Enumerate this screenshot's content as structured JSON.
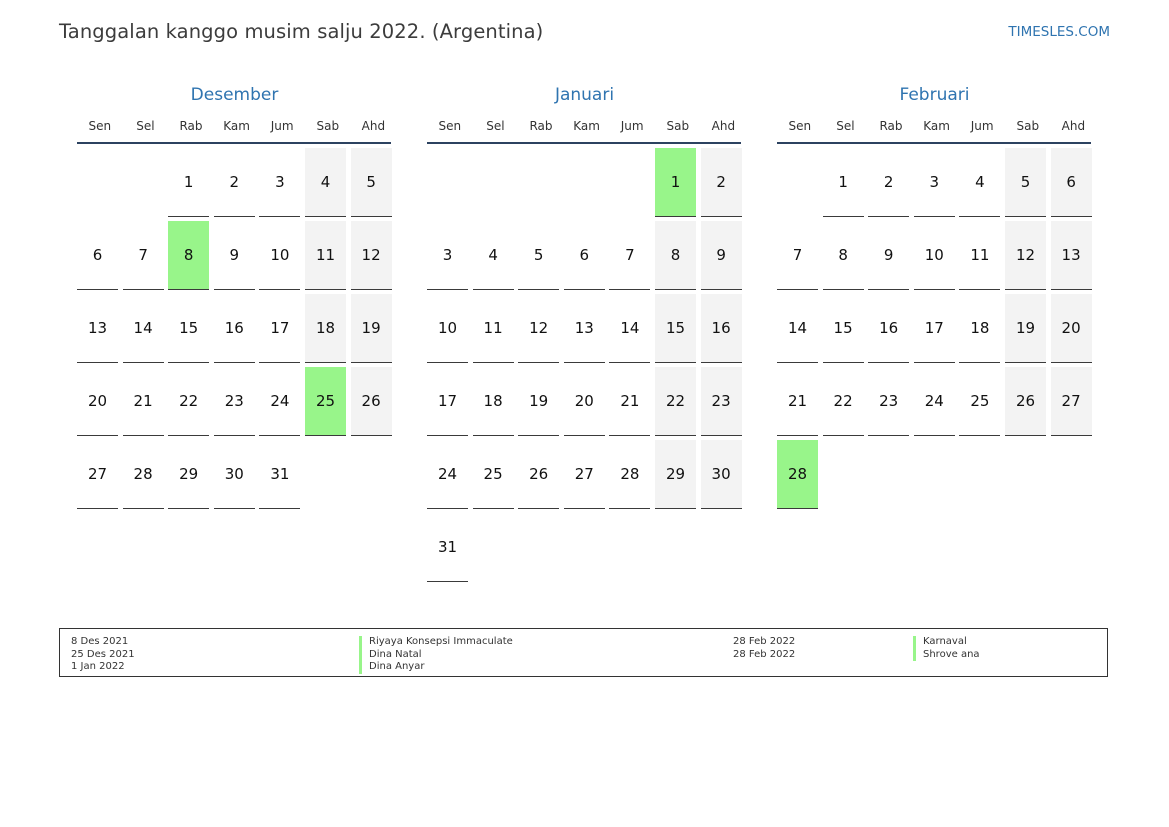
{
  "header": {
    "title": "Tanggalan kanggo musim salju 2022. (Argentina)",
    "brand": "TIMESLES.COM"
  },
  "weekdays": [
    "Sen",
    "Sel",
    "Rab",
    "Kam",
    "Jum",
    "Sab",
    "Ahd"
  ],
  "months": [
    {
      "name": "Desember",
      "start_offset": 2,
      "days": 31,
      "holidays": [
        8,
        25
      ]
    },
    {
      "name": "Januari",
      "start_offset": 5,
      "days": 31,
      "holidays": [
        1
      ]
    },
    {
      "name": "Februari",
      "start_offset": 1,
      "days": 28,
      "holidays": [
        28
      ]
    }
  ],
  "legend": {
    "left": [
      {
        "date": "8 Des 2021",
        "name": "Riyaya Konsepsi Immaculate"
      },
      {
        "date": "25 Des 2021",
        "name": "Dina Natal"
      },
      {
        "date": "1 Jan 2022",
        "name": "Dina Anyar"
      }
    ],
    "right": [
      {
        "date": "28 Feb 2022",
        "name": "Karnaval"
      },
      {
        "date": "28 Feb 2022",
        "name": "Shrove ana"
      }
    ]
  },
  "colors": {
    "holiday": "#98f58a",
    "weekend": "#f3f3f3",
    "accent": "#2f74b0"
  }
}
